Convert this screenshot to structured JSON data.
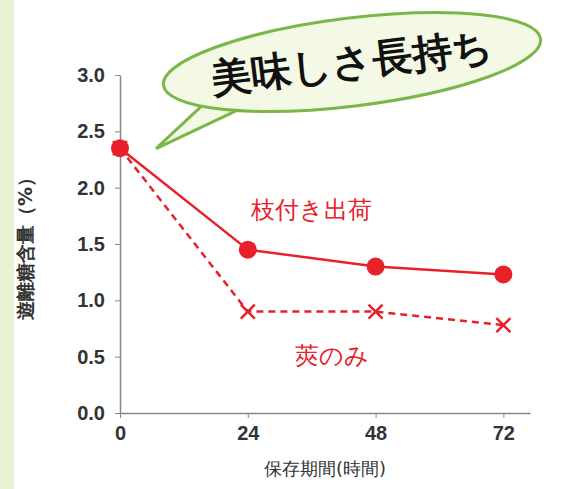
{
  "chart_data": {
    "type": "line",
    "annotation": "美味しさ長持ち",
    "xlabel": "保存期間(時間)",
    "ylabel": "遊離糖含量（%）",
    "x": [
      0,
      24,
      48,
      72
    ],
    "xlim": [
      0,
      77
    ],
    "xticks": [
      0,
      24,
      48,
      72
    ],
    "ylim": [
      0,
      3
    ],
    "yticks": [
      {
        "value": 0,
        "label": "0.0"
      },
      0.5,
      {
        "value": 1,
        "label": "1.0"
      },
      1.5,
      {
        "value": 2,
        "label": "2.0"
      },
      2.5,
      {
        "value": 3,
        "label": "3.0"
      }
    ],
    "grid": false,
    "series": [
      {
        "name": "枝付き出荷",
        "color": "#e8202a",
        "marker": "circle",
        "line_style": "solid",
        "values": [
          2.35,
          1.45,
          1.3,
          1.23
        ]
      },
      {
        "name": "莢のみ",
        "color": "#e8202a",
        "marker": "x",
        "line_style": "dashed",
        "values": [
          2.35,
          0.9,
          0.9,
          0.78
        ]
      }
    ]
  }
}
